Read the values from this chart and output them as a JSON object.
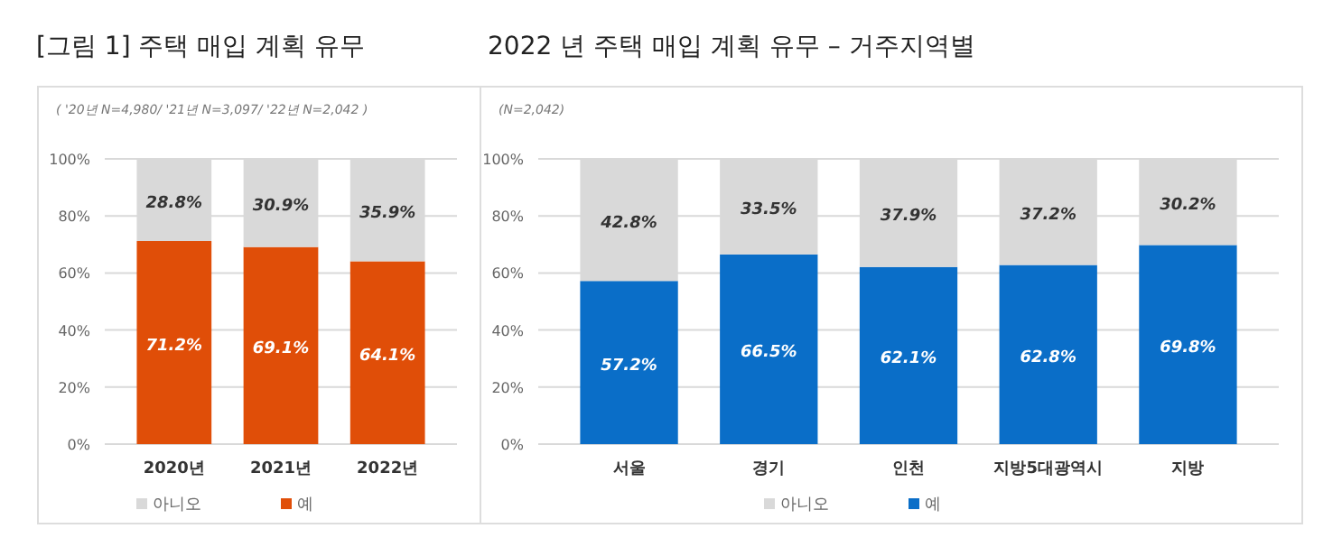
{
  "chart_data": [
    {
      "type": "bar",
      "title": "[그림 1] 주택 매입 계획 유무",
      "annotations": [
        "( '20년 N=4,980/ '21년 N=3,097/ '22년 N=2,042 )"
      ],
      "categories": [
        "2020년",
        "2021년",
        "2022년"
      ],
      "stacked": true,
      "ylim": [
        0,
        100
      ],
      "yticks": [
        {
          "value": 0,
          "label": "0%"
        },
        {
          "value": 20,
          "label": "20%"
        },
        {
          "value": 40,
          "label": "40%"
        },
        {
          "value": 60,
          "label": "60%"
        },
        {
          "value": 80,
          "label": "80%"
        },
        {
          "value": 100,
          "label": "100%"
        }
      ],
      "grid": "y",
      "legend": "bottom",
      "series": [
        {
          "name": "예",
          "color": "#e04e08",
          "values": [
            71.2,
            69.1,
            64.1
          ],
          "value_labels": [
            "71.2%",
            "69.1%",
            "64.1%"
          ]
        },
        {
          "name": "아니오",
          "color": "#d9d9d9",
          "values": [
            28.8,
            30.9,
            35.9
          ],
          "value_labels": [
            "28.8%",
            "30.9%",
            "35.9%"
          ]
        }
      ]
    },
    {
      "type": "bar",
      "title": "2022 년 주택 매입 계획 유무 – 거주지역별",
      "annotations": [
        "(N=2,042)"
      ],
      "categories": [
        "서울",
        "경기",
        "인천",
        "지방5대광역시",
        "지방"
      ],
      "stacked": true,
      "ylim": [
        0,
        100
      ],
      "yticks": [
        {
          "value": 0,
          "label": "0%"
        },
        {
          "value": 20,
          "label": "20%"
        },
        {
          "value": 40,
          "label": "40%"
        },
        {
          "value": 60,
          "label": "60%"
        },
        {
          "value": 80,
          "label": "80%"
        },
        {
          "value": 100,
          "label": "100%"
        }
      ],
      "grid": "y",
      "legend": "bottom",
      "series": [
        {
          "name": "예",
          "color": "#0a6ec8",
          "values": [
            57.2,
            66.5,
            62.1,
            62.8,
            69.8
          ],
          "value_labels": [
            "57.2%",
            "66.5%",
            "62.1%",
            "62.8%",
            "69.8%"
          ]
        },
        {
          "name": "아니오",
          "color": "#d9d9d9",
          "values": [
            42.8,
            33.5,
            37.9,
            37.2,
            30.2
          ],
          "value_labels": [
            "42.8%",
            "33.5%",
            "37.9%",
            "37.2%",
            "30.2%"
          ]
        }
      ]
    }
  ]
}
